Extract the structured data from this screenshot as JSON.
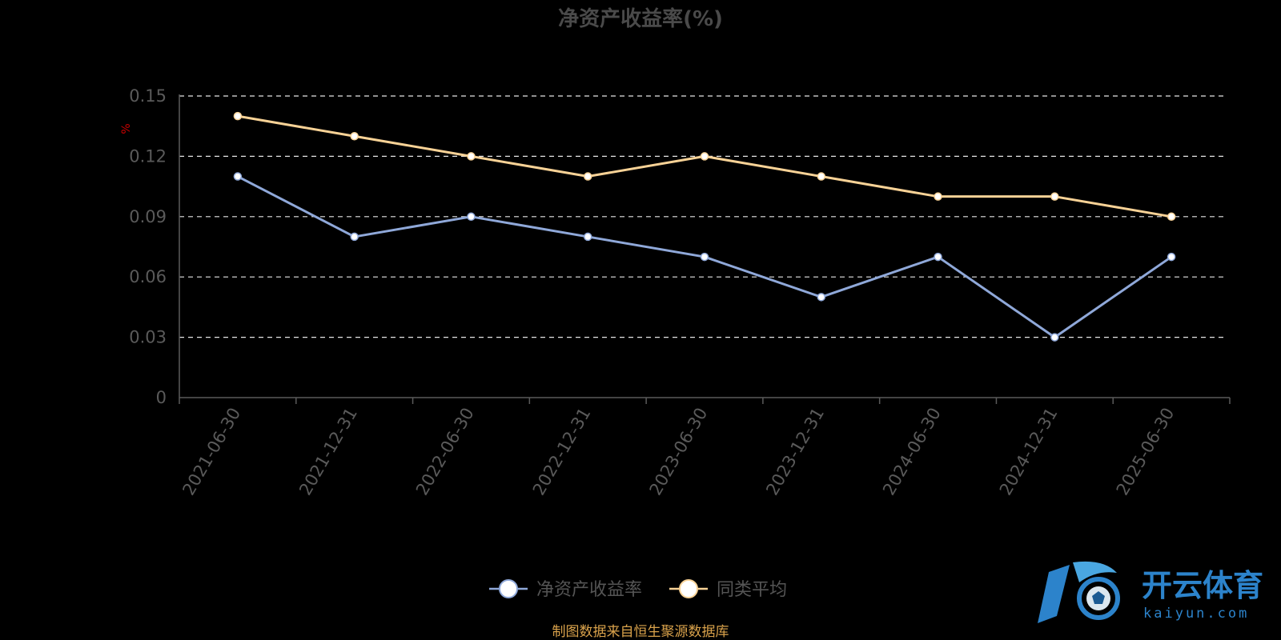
{
  "chart_data": {
    "type": "line",
    "title": "净资产收益率(%)",
    "unit": "%",
    "categories": [
      "2021-06-30",
      "2021-12-31",
      "2022-06-30",
      "2022-12-31",
      "2023-06-30",
      "2023-12-31",
      "2024-06-30",
      "2024-12-31",
      "2025-06-30"
    ],
    "series": [
      {
        "name": "净资产收益率",
        "color": "#8fa8d9",
        "values": [
          0.11,
          0.08,
          0.09,
          0.08,
          0.07,
          0.05,
          0.07,
          0.03,
          0.07
        ]
      },
      {
        "name": "同类平均",
        "color": "#f8d296",
        "values": [
          0.14,
          0.13,
          0.12,
          0.11,
          0.12,
          0.11,
          0.1,
          0.1,
          0.09
        ]
      }
    ],
    "yticks": [
      "0",
      "0.03",
      "0.06",
      "0.09",
      "0.12",
      "0.15"
    ],
    "ylim": [
      0,
      0.15
    ],
    "grid": "horizontal dashed",
    "legend": "bottom-center"
  },
  "source_note": "制图数据来自恒生聚源数据库",
  "watermark": {
    "brand": "开云体育",
    "domain": "kaiyun.com"
  }
}
